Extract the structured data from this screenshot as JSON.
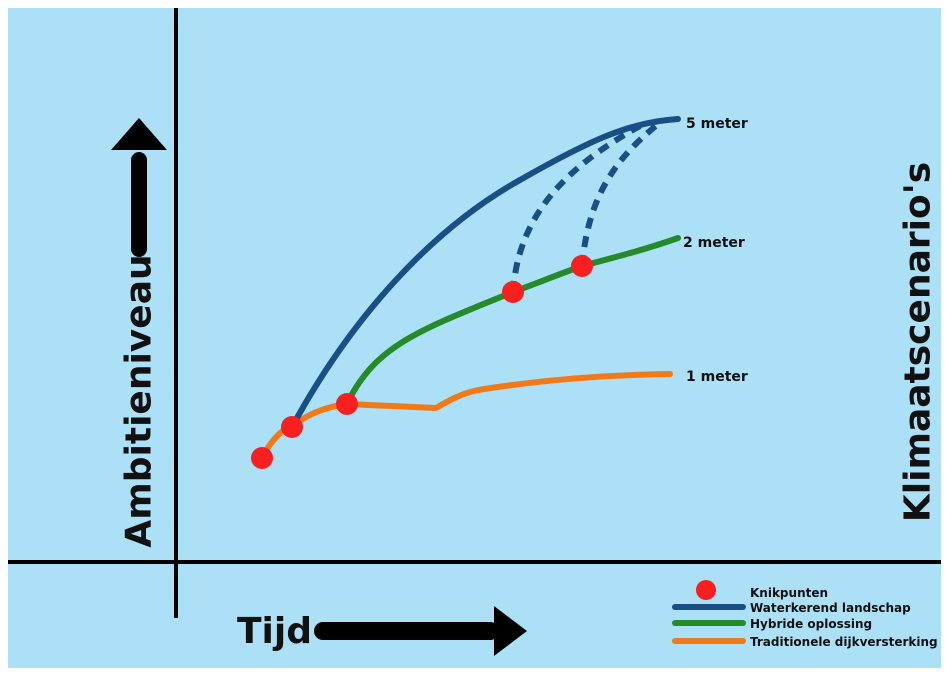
{
  "diagram": {
    "background": "#ace0f7",
    "y_axis_label": "Ambitieniveau",
    "x_axis_label": "Tijd",
    "right_label": "Klimaatscenario's",
    "scenarios": [
      {
        "label": "5 meter",
        "color": "#1a4f86"
      },
      {
        "label": "2 meter",
        "color": "#248a2a"
      },
      {
        "label": "1 meter",
        "color": "#f07a1a"
      }
    ],
    "legend": [
      {
        "label": "Knikpunten",
        "kind": "dot",
        "color": "#f71f1f"
      },
      {
        "label": "Waterkerend landschap",
        "kind": "line",
        "color": "#1a4f86"
      },
      {
        "label": "Hybride oplossing",
        "kind": "line",
        "color": "#248a2a"
      },
      {
        "label": "Traditionele dijkversterking",
        "kind": "line",
        "color": "#f07a1a"
      }
    ],
    "knikpunten_count": 5
  }
}
